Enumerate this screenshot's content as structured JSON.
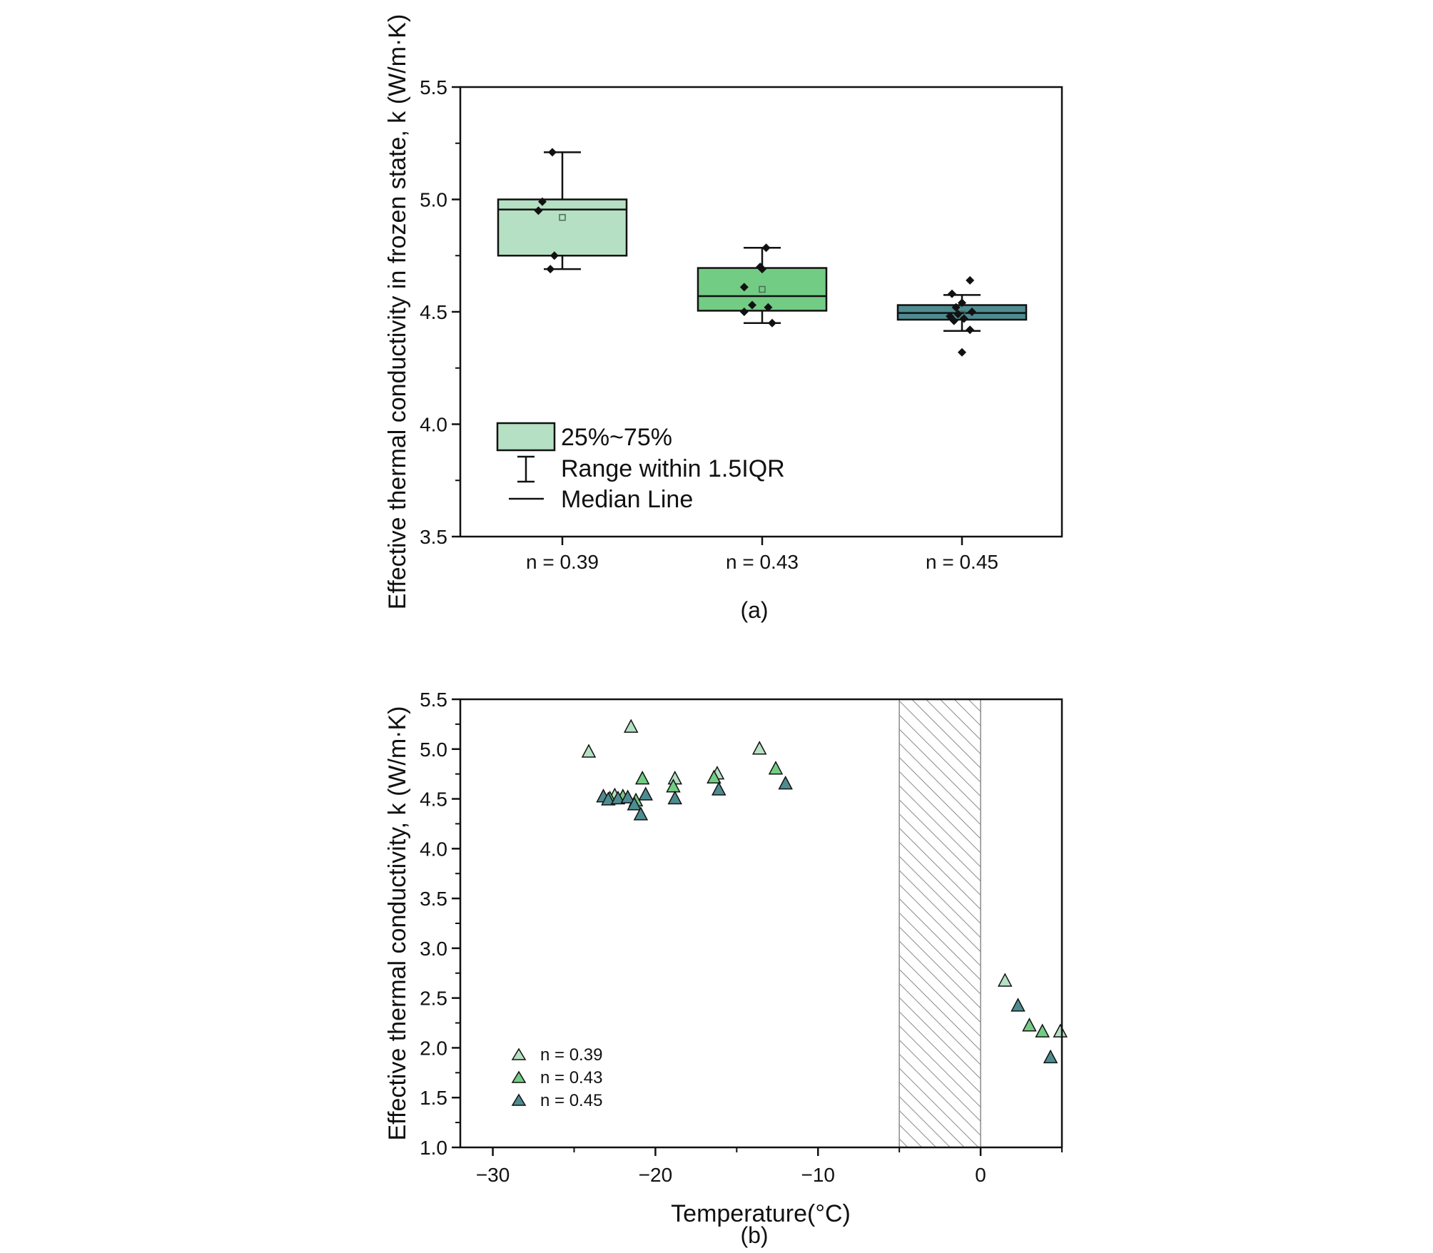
{
  "colors": {
    "n039": "#b5e0c3",
    "n043": "#73cc84",
    "n045": "#4e8c91",
    "stroke": "#111111",
    "hatch": "#8a8a8a"
  },
  "chart_data": [
    {
      "type": "box",
      "panel_label": "(a)",
      "ylabel": "Effective thermal conductivity in frozen state, k (W/m·K)",
      "ylim": [
        3.5,
        5.5
      ],
      "yticks": [
        "3.5",
        "4.0",
        "4.5",
        "5.0",
        "5.5"
      ],
      "categories": [
        "n = 0.39",
        "n = 0.43",
        "n = 0.45"
      ],
      "boxes": [
        {
          "name": "n = 0.39",
          "q1": 4.75,
          "median": 4.955,
          "q3": 5.0,
          "mean": 4.92,
          "whisker_low": 4.69,
          "whisker_high": 5.21,
          "points": [
            [
              -0.05,
              5.21
            ],
            [
              -0.1,
              4.99
            ],
            [
              -0.12,
              4.95
            ],
            [
              -0.04,
              4.75
            ],
            [
              -0.06,
              4.69
            ]
          ]
        },
        {
          "name": "n = 0.43",
          "q1": 4.505,
          "median": 4.57,
          "q3": 4.695,
          "mean": 4.6,
          "whisker_low": 4.45,
          "whisker_high": 4.785,
          "points": [
            [
              0.02,
              4.785
            ],
            [
              -0.01,
              4.7
            ],
            [
              0.0,
              4.69
            ],
            [
              -0.09,
              4.61
            ],
            [
              -0.05,
              4.53
            ],
            [
              0.03,
              4.52
            ],
            [
              -0.09,
              4.5
            ],
            [
              0.05,
              4.45
            ]
          ]
        },
        {
          "name": "n = 0.45",
          "q1": 4.465,
          "median": 4.495,
          "q3": 4.53,
          "mean": 4.49,
          "whisker_low": 4.415,
          "whisker_high": 4.575,
          "points": [
            [
              0.04,
              4.64
            ],
            [
              -0.05,
              4.58
            ],
            [
              0.0,
              4.54
            ],
            [
              -0.03,
              4.52
            ],
            [
              0.05,
              4.5
            ],
            [
              -0.02,
              4.49
            ],
            [
              -0.06,
              4.48
            ],
            [
              0.01,
              4.47
            ],
            [
              -0.04,
              4.46
            ],
            [
              0.04,
              4.42
            ],
            [
              0.0,
              4.32
            ]
          ]
        }
      ],
      "legend": {
        "position": "lower-left",
        "items": [
          "25%~75%",
          "Range within 1.5IQR",
          "Median Line"
        ]
      }
    },
    {
      "type": "scatter",
      "panel_label": "(b)",
      "xlabel": "Temperature(°C)",
      "ylabel": "Effective thermal conductivity, k (W/m·K)",
      "xlim": [
        -32,
        5
      ],
      "ylim": [
        1.0,
        5.5
      ],
      "xticks": [
        -30,
        -20,
        -10,
        0
      ],
      "xtick_labels": [
        "−30",
        "−20",
        "−10",
        "0"
      ],
      "yticks": [
        "1.0",
        "1.5",
        "2.0",
        "2.5",
        "3.0",
        "3.5",
        "4.0",
        "4.5",
        "5.0",
        "5.5"
      ],
      "shaded_region": [
        -5,
        0
      ],
      "series": [
        {
          "name": "n = 0.39",
          "points": [
            [
              -24.1,
              4.97
            ],
            [
              -21.5,
              5.22
            ],
            [
              -13.6,
              5.0
            ],
            [
              -16.2,
              4.75
            ],
            [
              -18.8,
              4.7
            ],
            [
              -22.5,
              4.53
            ],
            [
              1.5,
              2.67
            ],
            [
              4.9,
              2.16
            ]
          ]
        },
        {
          "name": "n = 0.43",
          "points": [
            [
              -20.8,
              4.7
            ],
            [
              -18.9,
              4.62
            ],
            [
              -16.4,
              4.71
            ],
            [
              -12.6,
              4.8
            ],
            [
              -21.2,
              4.48
            ],
            [
              -22.0,
              4.52
            ],
            [
              -22.8,
              4.5
            ],
            [
              3.0,
              2.22
            ],
            [
              3.8,
              2.16
            ]
          ]
        },
        {
          "name": "n = 0.45",
          "points": [
            [
              -23.2,
              4.52
            ],
            [
              -22.9,
              4.49
            ],
            [
              -22.3,
              4.5
            ],
            [
              -21.7,
              4.51
            ],
            [
              -21.3,
              4.44
            ],
            [
              -20.6,
              4.54
            ],
            [
              -20.9,
              4.34
            ],
            [
              -18.8,
              4.5
            ],
            [
              -16.1,
              4.59
            ],
            [
              -12.0,
              4.65
            ],
            [
              2.3,
              2.42
            ],
            [
              4.3,
              1.9
            ]
          ]
        }
      ],
      "legend": {
        "position": "lower-left",
        "items": [
          "n = 0.39",
          "n = 0.43",
          "n = 0.45"
        ]
      }
    }
  ]
}
